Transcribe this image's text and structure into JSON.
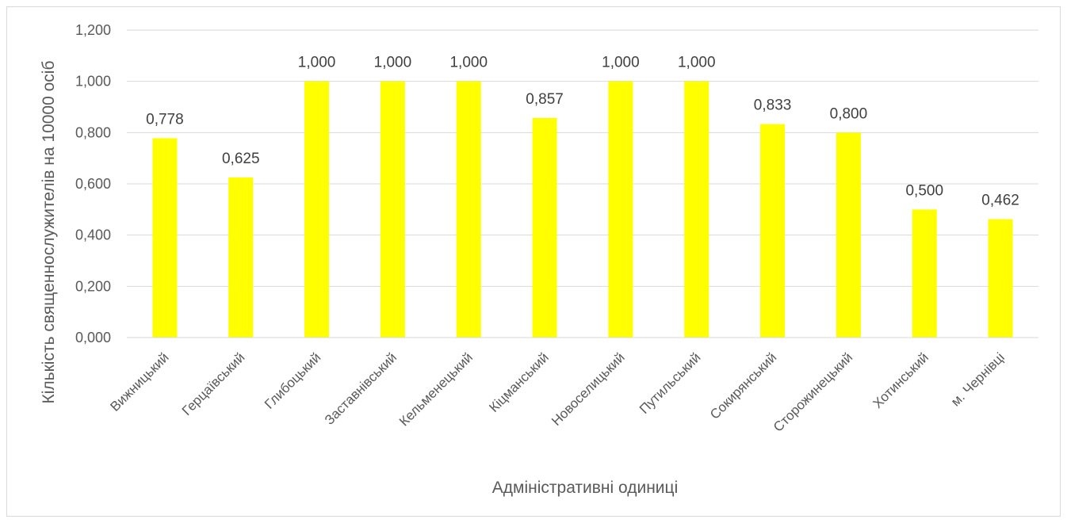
{
  "chart_data": {
    "type": "bar",
    "categories": [
      "Вижницький",
      "Герцаївський",
      "Глибоцький",
      "Заставнівський",
      "Кельменецький",
      "Кіцманський",
      "Новоселицький",
      "Путильський",
      "Сокирянський",
      "Сторожинецький",
      "Хотинський",
      "м. Чернівці"
    ],
    "values": [
      0.778,
      0.625,
      1.0,
      1.0,
      1.0,
      0.857,
      1.0,
      1.0,
      0.833,
      0.8,
      0.5,
      0.462
    ],
    "data_labels": [
      "0,778",
      "0,625",
      "1,000",
      "1,000",
      "1,000",
      "0,857",
      "1,000",
      "1,000",
      "0,833",
      "0,800",
      "0,500",
      "0,462"
    ],
    "y_ticks": [
      0,
      0.2,
      0.4,
      0.6,
      0.8,
      1.0,
      1.2
    ],
    "y_tick_labels": [
      "0,000",
      "0,200",
      "0,400",
      "0,600",
      "0,800",
      "1,000",
      "1,200"
    ],
    "title": "",
    "xlabel": "Адміністративні одиниці",
    "ylabel": "Кількість священнослужителів на 10000 осіб",
    "ylim": [
      0,
      1.2
    ],
    "grid": true,
    "legend": "none",
    "bar_color": "#ffff00",
    "grid_color": "#d9d9d9"
  }
}
